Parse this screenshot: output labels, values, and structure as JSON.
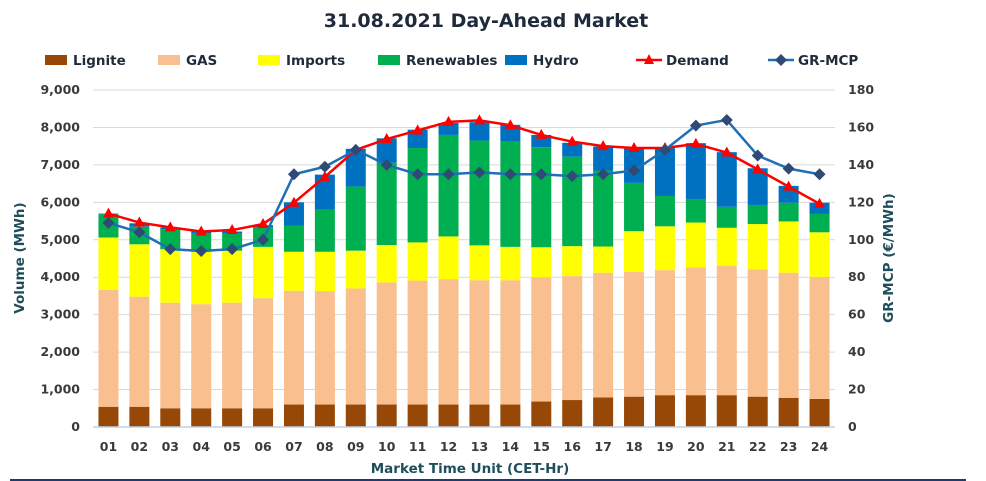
{
  "chart_data": {
    "type": "bar",
    "title": "31.08.2021  Day-Ahead Market",
    "xlabel": "Market Time Unit (CET-Hr)",
    "ylabel": "Volume (MWh)",
    "ylabel_right": "GR-MCP (€/MWh)",
    "ylim": [
      0,
      9000
    ],
    "ylim_right": [
      0,
      180
    ],
    "yticks": [
      "0",
      "1,000",
      "2,000",
      "3,000",
      "4,000",
      "5,000",
      "6,000",
      "7,000",
      "8,000",
      "9,000"
    ],
    "yticks_right": [
      "0",
      "20",
      "40",
      "60",
      "80",
      "100",
      "120",
      "140",
      "160",
      "180"
    ],
    "grid": true,
    "legend_position": "top",
    "categories": [
      "01",
      "02",
      "03",
      "04",
      "05",
      "06",
      "07",
      "08",
      "09",
      "10",
      "11",
      "12",
      "13",
      "14",
      "15",
      "16",
      "17",
      "18",
      "19",
      "20",
      "21",
      "22",
      "23",
      "24"
    ],
    "series": [
      {
        "name": "Lignite",
        "kind": "stacked-bar",
        "color": "#974706",
        "values": [
          540,
          540,
          500,
          500,
          500,
          500,
          600,
          600,
          600,
          600,
          600,
          600,
          600,
          600,
          680,
          720,
          790,
          810,
          850,
          850,
          850,
          810,
          780,
          750
        ]
      },
      {
        "name": "GAS",
        "kind": "stacked-bar",
        "color": "#F9BF8F",
        "values": [
          3120,
          2940,
          2820,
          2780,
          2820,
          2940,
          3040,
          3030,
          3100,
          3260,
          3310,
          3350,
          3320,
          3320,
          3320,
          3310,
          3330,
          3330,
          3340,
          3410,
          3460,
          3400,
          3340,
          3260
        ]
      },
      {
        "name": "Imports",
        "kind": "stacked-bar",
        "color": "#FFFF00",
        "values": [
          1400,
          1400,
          1430,
          1400,
          1390,
          1370,
          1040,
          1050,
          1010,
          1000,
          1020,
          1140,
          930,
          890,
          800,
          800,
          700,
          1090,
          1170,
          1200,
          1010,
          1210,
          1370,
          1190
        ]
      },
      {
        "name": "Renewables",
        "kind": "stacked-bar",
        "color": "#00B050",
        "values": [
          620,
          470,
          530,
          480,
          450,
          530,
          700,
          1120,
          1710,
          2200,
          2520,
          2710,
          2800,
          2810,
          2670,
          2390,
          2030,
          1290,
          810,
          630,
          560,
          510,
          500,
          490
        ]
      },
      {
        "name": "Hydro",
        "kind": "stacked-bar",
        "color": "#0070C0",
        "values": [
          20,
          90,
          50,
          60,
          60,
          50,
          620,
          940,
          1010,
          650,
          490,
          320,
          490,
          450,
          330,
          370,
          640,
          930,
          1280,
          1490,
          1460,
          980,
          450,
          300
        ]
      },
      {
        "name": "Demand",
        "kind": "line",
        "color": "#FF0000",
        "axis": "left",
        "values": [
          5700,
          5460,
          5330,
          5220,
          5260,
          5420,
          5990,
          6680,
          7400,
          7690,
          7920,
          8150,
          8190,
          8060,
          7800,
          7620,
          7500,
          7450,
          7450,
          7560,
          7330,
          6880,
          6420,
          5960
        ]
      },
      {
        "name": "GR-MCP",
        "kind": "line",
        "color": "#1F6FB5",
        "marker_color": "#2F4A74",
        "axis": "right",
        "values": [
          109,
          104,
          95,
          94,
          95,
          100,
          135,
          139,
          148,
          140,
          135,
          135,
          136,
          135,
          135,
          134,
          135,
          137,
          148,
          161,
          164,
          145,
          138,
          135
        ]
      }
    ]
  }
}
